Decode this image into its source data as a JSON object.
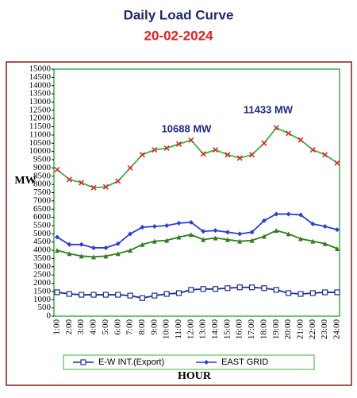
{
  "chart_data": {
    "type": "line",
    "title": "Daily Load Curve",
    "subtitle": "20-02-2024",
    "ylabel": "MW",
    "xlabel": "HOUR",
    "annotations": [
      "10688 MW",
      "11433 MW"
    ],
    "categories": [
      "1:00",
      "2:00",
      "3:00",
      "4:00",
      "5:00",
      "6:00",
      "7:00",
      "8:00",
      "9:00",
      "10:00",
      "11:00",
      "12:00",
      "13:00",
      "14:00",
      "15:00",
      "16:00",
      "17:00",
      "18:00",
      "19:00",
      "20:00",
      "21:00",
      "22:00",
      "23:00",
      "24:00"
    ],
    "ylim": [
      0,
      15000
    ],
    "yticks": [
      0,
      500,
      1000,
      1500,
      2000,
      2500,
      3000,
      3500,
      4000,
      4500,
      5000,
      5500,
      6000,
      6500,
      7000,
      7500,
      8000,
      8500,
      9000,
      9500,
      10000,
      10500,
      11000,
      11500,
      12000,
      12500,
      13000,
      13500,
      14000,
      14500,
      15000
    ],
    "series": [
      {
        "color": "#3cb043",
        "marker": "x",
        "marker_color": "#e02020",
        "values": [
          8900,
          8300,
          8100,
          7800,
          7850,
          8200,
          9000,
          9800,
          10100,
          10200,
          10450,
          10688,
          9850,
          10100,
          9800,
          9600,
          9800,
          10500,
          11433,
          11100,
          10700,
          10100,
          9800,
          9300
        ]
      },
      {
        "name": "EAST GRID",
        "color": "#2b3fd6",
        "marker": "diamond",
        "values": [
          4800,
          4350,
          4350,
          4150,
          4150,
          4400,
          5000,
          5400,
          5450,
          5500,
          5650,
          5700,
          5150,
          5200,
          5100,
          5000,
          5100,
          5800,
          6200,
          6200,
          6150,
          5600,
          5450,
          5250
        ]
      },
      {
        "color": "#2e7d1e",
        "marker": "triangle",
        "values": [
          4000,
          3800,
          3650,
          3600,
          3650,
          3800,
          4000,
          4350,
          4550,
          4600,
          4800,
          4950,
          4650,
          4750,
          4650,
          4550,
          4600,
          4850,
          5200,
          5000,
          4700,
          4550,
          4400,
          4100
        ]
      },
      {
        "name": "E-W INT.(Export)",
        "color": "#1f2f8f",
        "marker": "square",
        "values": [
          1450,
          1350,
          1300,
          1300,
          1300,
          1300,
          1250,
          1100,
          1250,
          1350,
          1400,
          1600,
          1650,
          1650,
          1700,
          1750,
          1750,
          1700,
          1600,
          1400,
          1350,
          1400,
          1450,
          1450
        ]
      }
    ]
  }
}
